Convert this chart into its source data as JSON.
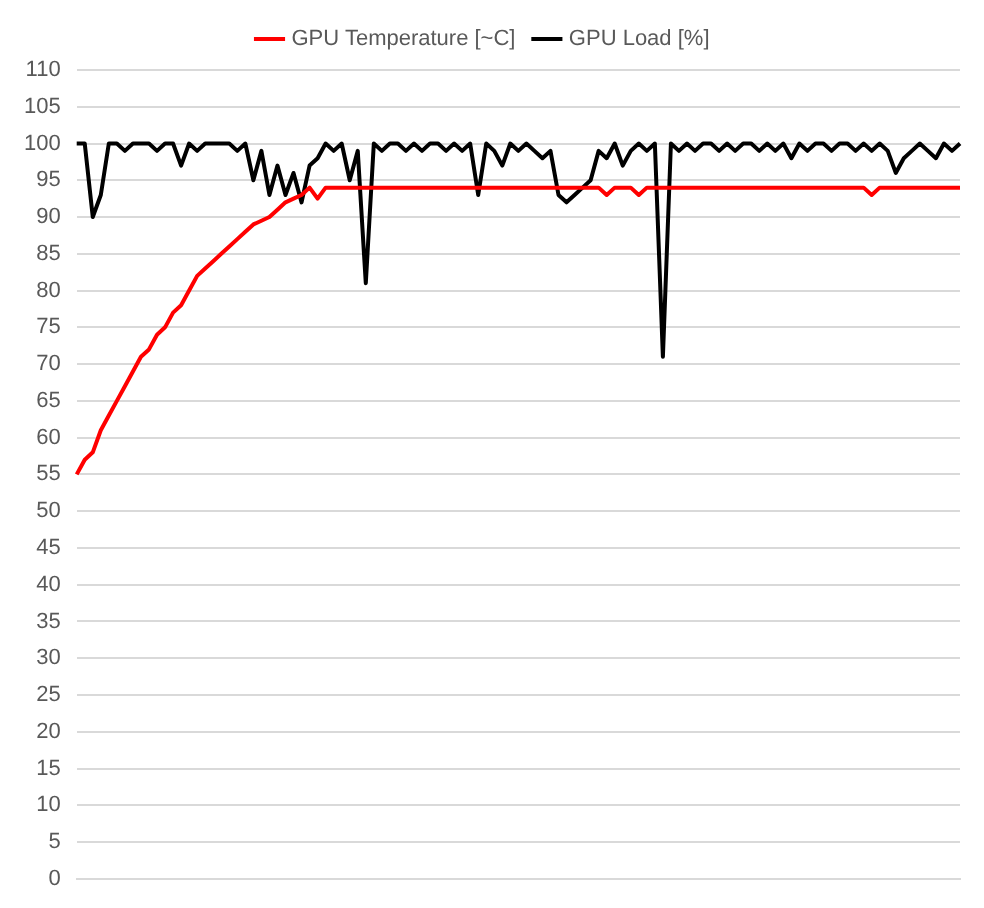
{
  "chart_data": {
    "type": "line",
    "categories": [
      null,
      null,
      null,
      null,
      null,
      null,
      null,
      null,
      null,
      null,
      null,
      null,
      null,
      null,
      null,
      null,
      null,
      null,
      null,
      null,
      null,
      null,
      null,
      null,
      null,
      null,
      null,
      null,
      null,
      null,
      null,
      null,
      null,
      null,
      null,
      null,
      null,
      null,
      null,
      null,
      null,
      null,
      null,
      null,
      null,
      null,
      null,
      null,
      null,
      null,
      null,
      null,
      null,
      null,
      null,
      null,
      null,
      null,
      null,
      null,
      null,
      null,
      null,
      null,
      null,
      null,
      null,
      null,
      null,
      null,
      null,
      null,
      null,
      null,
      null,
      null,
      null,
      null,
      null,
      null,
      null,
      null,
      null,
      null,
      null,
      null,
      null,
      null,
      null,
      null,
      null,
      null,
      null,
      null,
      null,
      null,
      null,
      null,
      null,
      null,
      null,
      null,
      null,
      null,
      null,
      null,
      null,
      null,
      null,
      null,
      null
    ],
    "series": [
      {
        "name": "GPU Temperature [~C]",
        "color": "#ff0000",
        "values": [
          55,
          57,
          58,
          61,
          63,
          65,
          67,
          69,
          71,
          72,
          74,
          75,
          77,
          78,
          80,
          82,
          83,
          84,
          85,
          86,
          87,
          88,
          89,
          89.5,
          90,
          91,
          92,
          92.5,
          93,
          94,
          92.5,
          94,
          94,
          94,
          94,
          94,
          94,
          94,
          94,
          94,
          94,
          94,
          94,
          94,
          94,
          94,
          94,
          94,
          94,
          94,
          94,
          94,
          94,
          94,
          94,
          94,
          94,
          94,
          94,
          94,
          94,
          94,
          94,
          94,
          94,
          94,
          93,
          94,
          94,
          94,
          93,
          94,
          94,
          94,
          94,
          94,
          94,
          94,
          94,
          94,
          94,
          94,
          94,
          94,
          94,
          94,
          94,
          94,
          94,
          94,
          94,
          94,
          94,
          94,
          94,
          94,
          94,
          94,
          94,
          93,
          94,
          94,
          94,
          94,
          94,
          94,
          94,
          94,
          94,
          94,
          94
        ]
      },
      {
        "name": "GPU Load [%]",
        "color": "#000000",
        "values": [
          100,
          100,
          90,
          93,
          100,
          100,
          99,
          100,
          100,
          100,
          99,
          100,
          100,
          97,
          100,
          99,
          100,
          100,
          100,
          100,
          99,
          100,
          95,
          99,
          93,
          97,
          93,
          96,
          92,
          97,
          98,
          100,
          99,
          100,
          95,
          99,
          81,
          100,
          99,
          100,
          100,
          99,
          100,
          99,
          100,
          100,
          99,
          100,
          99,
          100,
          93,
          100,
          99,
          97,
          100,
          99,
          100,
          99,
          98,
          99,
          93,
          92,
          93,
          94,
          95,
          99,
          98,
          100,
          97,
          99,
          100,
          99,
          100,
          71,
          100,
          99,
          100,
          99,
          100,
          100,
          99,
          100,
          99,
          100,
          100,
          99,
          100,
          99,
          100,
          98,
          100,
          99,
          100,
          100,
          99,
          100,
          100,
          99,
          100,
          99,
          100,
          99,
          96,
          98,
          99,
          100,
          99,
          98,
          100,
          99,
          100
        ]
      }
    ],
    "ylim": [
      0,
      110
    ],
    "yticks": [
      0,
      5,
      10,
      15,
      20,
      25,
      30,
      35,
      40,
      45,
      50,
      55,
      60,
      65,
      70,
      75,
      80,
      85,
      90,
      95,
      100,
      105,
      110
    ],
    "grid": "y",
    "legend": "top",
    "marker": "none",
    "line_style": "solid"
  }
}
